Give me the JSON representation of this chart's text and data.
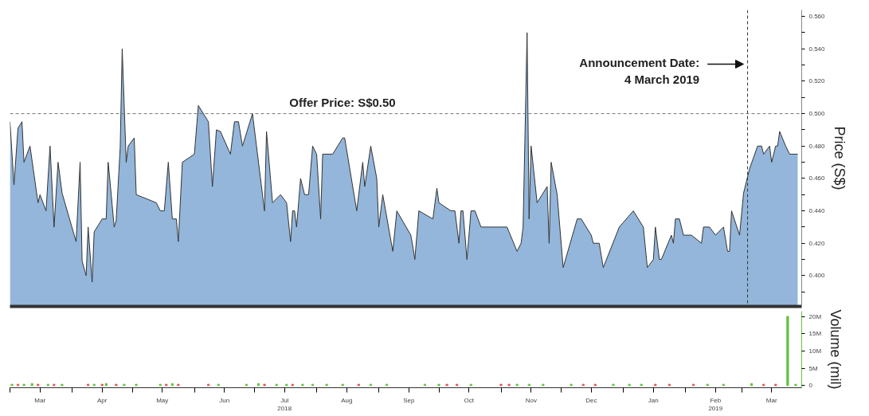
{
  "chart_data": [
    {
      "type": "area",
      "ylabel": "Price (S$)",
      "xlim": [
        "2018-03-01",
        "2019-03-31"
      ],
      "ylim": [
        0.381,
        0.564
      ],
      "tick_labels": "y",
      "grid": false,
      "yticks": [
        {
          "value": 0.39,
          "label": null
        },
        {
          "value": 0.4,
          "label": "0.400"
        },
        {
          "value": 0.41,
          "label": null
        },
        {
          "value": 0.42,
          "label": "0.420"
        },
        {
          "value": 0.43,
          "label": null
        },
        {
          "value": 0.44,
          "label": "0.440"
        },
        {
          "value": 0.45,
          "label": null
        },
        {
          "value": 0.46,
          "label": "0.460"
        },
        {
          "value": 0.47,
          "label": null
        },
        {
          "value": 0.48,
          "label": "0.480"
        },
        {
          "value": 0.49,
          "label": null
        },
        {
          "value": 0.5,
          "label": "0.500"
        },
        {
          "value": 0.51,
          "label": null
        },
        {
          "value": 0.52,
          "label": "0.520"
        },
        {
          "value": 0.53,
          "label": null
        },
        {
          "value": 0.54,
          "label": "0.540"
        },
        {
          "value": 0.55,
          "label": null
        },
        {
          "value": 0.56,
          "label": "0.560"
        }
      ],
      "x": [
        "2018-03-01",
        "2018-03-03",
        "2018-03-05",
        "2018-03-07",
        "2018-03-08",
        "2018-03-11",
        "2018-03-15",
        "2018-03-16",
        "2018-03-19",
        "2018-03-21",
        "2018-03-23",
        "2018-03-25",
        "2018-03-27",
        "2018-04-03",
        "2018-04-05",
        "2018-04-06",
        "2018-04-08",
        "2018-04-09",
        "2018-04-11",
        "2018-04-12",
        "2018-04-14",
        "2018-04-16",
        "2018-04-18",
        "2018-04-19",
        "2018-04-20",
        "2018-04-22",
        "2018-04-23",
        "2018-04-25",
        "2018-04-26",
        "2018-04-28",
        "2018-04-29",
        "2018-05-02",
        "2018-05-03",
        "2018-05-13",
        "2018-05-15",
        "2018-05-17",
        "2018-05-19",
        "2018-05-21",
        "2018-05-23",
        "2018-05-24",
        "2018-05-26",
        "2018-06-01",
        "2018-06-03",
        "2018-06-08",
        "2018-06-10",
        "2018-06-12",
        "2018-06-14",
        "2018-06-19",
        "2018-06-21",
        "2018-06-23",
        "2018-06-25",
        "2018-06-30",
        "2018-07-06",
        "2018-07-07",
        "2018-07-10",
        "2018-07-14",
        "2018-07-17",
        "2018-07-19",
        "2018-07-20",
        "2018-07-21",
        "2018-07-22",
        "2018-07-24",
        "2018-07-26",
        "2018-07-28",
        "2018-07-30",
        "2018-08-01",
        "2018-08-03",
        "2018-08-04",
        "2018-08-09",
        "2018-08-14",
        "2018-08-15",
        "2018-08-21",
        "2018-08-24",
        "2018-08-25",
        "2018-08-28",
        "2018-08-31",
        "2018-09-01",
        "2018-09-03",
        "2018-09-08",
        "2018-09-10",
        "2018-09-17",
        "2018-09-18",
        "2018-09-19",
        "2018-09-21",
        "2018-09-28",
        "2018-09-30",
        "2018-10-01",
        "2018-10-07",
        "2018-10-09",
        "2018-10-11",
        "2018-10-12",
        "2018-10-13",
        "2018-10-15",
        "2018-10-17",
        "2018-10-19",
        "2018-10-22",
        "2018-11-04",
        "2018-11-09",
        "2018-11-11",
        "2018-11-12",
        "2018-11-14",
        "2018-11-15",
        "2018-11-16",
        "2018-11-19",
        "2018-11-24",
        "2018-11-25",
        "2018-11-26",
        "2018-11-29",
        "2018-12-02",
        "2018-12-09",
        "2018-12-11",
        "2018-12-16",
        "2018-12-17",
        "2018-12-20",
        "2018-12-22",
        "2018-12-30",
        "2019-01-06",
        "2019-01-11",
        "2019-01-13",
        "2019-01-16",
        "2019-01-17",
        "2019-01-19",
        "2019-01-20",
        "2019-01-25",
        "2019-01-26",
        "2019-01-27",
        "2019-01-29",
        "2019-01-31",
        "2019-02-04",
        "2019-02-09",
        "2019-02-10",
        "2019-02-13",
        "2019-02-16",
        "2019-02-20",
        "2019-02-22",
        "2019-02-23",
        "2019-02-24",
        "2019-02-28",
        "2019-03-02",
        "2019-03-05",
        "2019-03-09",
        "2019-03-11",
        "2019-03-12",
        "2019-03-15",
        "2019-03-16",
        "2019-03-18",
        "2019-03-19",
        "2019-03-20",
        "2019-03-23",
        "2019-03-25",
        "2019-03-29"
      ],
      "series": [
        {
          "color": "#93b6da",
          "values": [
            0.495,
            0.456,
            0.491,
            0.495,
            0.47,
            0.48,
            0.445,
            0.45,
            0.44,
            0.48,
            0.43,
            0.47,
            0.451,
            0.421,
            0.47,
            0.409,
            0.4,
            0.43,
            0.396,
            0.427,
            0.431,
            0.435,
            0.435,
            0.47,
            0.457,
            0.43,
            0.434,
            0.479,
            0.54,
            0.47,
            0.48,
            0.485,
            0.45,
            0.445,
            0.44,
            0.44,
            0.47,
            0.435,
            0.435,
            0.421,
            0.47,
            0.475,
            0.505,
            0.495,
            0.455,
            0.49,
            0.489,
            0.475,
            0.495,
            0.495,
            0.48,
            0.5,
            0.44,
            0.489,
            0.445,
            0.45,
            0.445,
            0.421,
            0.44,
            0.44,
            0.43,
            0.46,
            0.45,
            0.45,
            0.48,
            0.475,
            0.435,
            0.475,
            0.475,
            0.485,
            0.485,
            0.44,
            0.47,
            0.455,
            0.48,
            0.46,
            0.43,
            0.45,
            0.415,
            0.44,
            0.425,
            0.418,
            0.41,
            0.44,
            0.435,
            0.454,
            0.445,
            0.44,
            0.44,
            0.42,
            0.44,
            0.44,
            0.41,
            0.44,
            0.44,
            0.43,
            0.43,
            0.415,
            0.42,
            0.43,
            0.55,
            0.435,
            0.48,
            0.445,
            0.455,
            0.42,
            0.47,
            0.45,
            0.405,
            0.435,
            0.435,
            0.425,
            0.42,
            0.42,
            0.405,
            0.43,
            0.44,
            0.43,
            0.405,
            0.41,
            0.43,
            0.41,
            0.41,
            0.425,
            0.42,
            0.435,
            0.435,
            0.425,
            0.425,
            0.42,
            0.43,
            0.43,
            0.425,
            0.43,
            0.415,
            0.415,
            0.44,
            0.425,
            0.451,
            0.466,
            0.48,
            0.48,
            0.475,
            0.48,
            0.47,
            0.48,
            0.48,
            0.489,
            0.48,
            0.475,
            0.475
          ]
        }
      ],
      "ref_lines": [
        {
          "axis": "y",
          "value": 0.5,
          "label": "Offer Price: S$0.50",
          "color": "#777777",
          "line_style": "dashed"
        },
        {
          "axis": "x",
          "value": "2019-03-04",
          "label": "Announcement Date:\n4 March 2019",
          "color": "#333333",
          "line_style": "dashed"
        }
      ]
    },
    {
      "type": "bar",
      "ylabel": "Volume (mil)",
      "xlim": [
        "2018-03-01",
        "2019-03-31"
      ],
      "ylim": [
        -0.6,
        21.5
      ],
      "grid": false,
      "yticks": [
        {
          "value": 0,
          "label": "0"
        },
        {
          "value": 5,
          "label": "5M"
        },
        {
          "value": 10,
          "label": "10M"
        },
        {
          "value": 15,
          "label": "15M"
        },
        {
          "value": 20,
          "label": "20M"
        }
      ],
      "xticks": [
        {
          "value": "2018-03-01",
          "label": null
        },
        {
          "value": "2018-03-16",
          "label": "Mar"
        },
        {
          "value": "2018-04-01",
          "label": null
        },
        {
          "value": "2018-04-16",
          "label": "Apr"
        },
        {
          "value": "2018-05-01",
          "label": null
        },
        {
          "value": "2018-05-16",
          "label": "May"
        },
        {
          "value": "2018-06-01",
          "label": null
        },
        {
          "value": "2018-06-16",
          "label": "Jun"
        },
        {
          "value": "2018-07-01",
          "label": null
        },
        {
          "value": "2018-07-16",
          "label": "Jul\n2018"
        },
        {
          "value": "2018-08-01",
          "label": null
        },
        {
          "value": "2018-08-16",
          "label": "Aug"
        },
        {
          "value": "2018-09-01",
          "label": null
        },
        {
          "value": "2018-09-16",
          "label": "Sep"
        },
        {
          "value": "2018-10-01",
          "label": null
        },
        {
          "value": "2018-10-16",
          "label": "Oct"
        },
        {
          "value": "2018-11-01",
          "label": null
        },
        {
          "value": "2018-11-16",
          "label": "Nov"
        },
        {
          "value": "2018-12-01",
          "label": null
        },
        {
          "value": "2018-12-16",
          "label": "Dec"
        },
        {
          "value": "2019-01-01",
          "label": null
        },
        {
          "value": "2019-01-16",
          "label": "Jan"
        },
        {
          "value": "2019-02-01",
          "label": null
        },
        {
          "value": "2019-02-16",
          "label": "Feb\n2019"
        },
        {
          "value": "2019-03-01",
          "label": null
        },
        {
          "value": "2019-03-16",
          "label": "Mar"
        }
      ],
      "x": [
        "2018-03-02",
        "2018-03-05",
        "2018-03-08",
        "2018-03-12",
        "2018-03-15",
        "2018-03-20",
        "2018-03-23",
        "2018-03-27",
        "2018-04-09",
        "2018-04-12",
        "2018-04-16",
        "2018-04-18",
        "2018-04-23",
        "2018-04-27",
        "2018-05-03",
        "2018-05-15",
        "2018-05-18",
        "2018-05-21",
        "2018-05-24",
        "2018-06-08",
        "2018-06-13",
        "2018-06-27",
        "2018-07-03",
        "2018-07-06",
        "2018-07-12",
        "2018-07-17",
        "2018-07-20",
        "2018-07-25",
        "2018-07-30",
        "2018-08-06",
        "2018-08-14",
        "2018-08-22",
        "2018-08-28",
        "2018-09-05",
        "2018-09-24",
        "2018-10-01",
        "2018-10-05",
        "2018-10-10",
        "2018-10-17",
        "2018-11-01",
        "2018-11-05",
        "2018-11-09",
        "2018-11-15",
        "2018-11-22",
        "2018-12-06",
        "2018-12-12",
        "2018-12-18",
        "2018-12-27",
        "2019-01-04",
        "2019-01-10",
        "2019-01-17",
        "2019-01-24",
        "2019-02-05",
        "2019-02-12",
        "2019-02-20",
        "2019-03-06",
        "2019-03-12",
        "2019-03-18",
        "2019-03-24",
        "2019-03-28"
      ],
      "series": [
        {
          "values": [
            0.4,
            0.4,
            0.4,
            0.6,
            0.4,
            0.4,
            0.4,
            0.4,
            0.4,
            0.4,
            0.4,
            0.6,
            0.4,
            0.4,
            0.4,
            0.4,
            0.4,
            0.6,
            0.4,
            0.4,
            0.4,
            0.4,
            0.6,
            0.4,
            0.4,
            0.4,
            0.4,
            0.4,
            0.4,
            0.4,
            0.4,
            0.4,
            0.4,
            0.4,
            0.4,
            0.4,
            0.4,
            0.4,
            0.4,
            0.4,
            0.4,
            0.4,
            0.4,
            0.4,
            0.4,
            0.4,
            0.4,
            0.4,
            0.4,
            0.4,
            0.4,
            0.4,
            0.4,
            0.4,
            0.4,
            0.6,
            0.4,
            0.4,
            20,
            0.4
          ],
          "colors": [
            "#66c244",
            "#e05555",
            "#66c244",
            "#66c244",
            "#e05555",
            "#66c244",
            "#e05555",
            "#66c244",
            "#e05555",
            "#66c244",
            "#e05555",
            "#66c244",
            "#e05555",
            "#66c244",
            "#66c244",
            "#66c244",
            "#e05555",
            "#66c244",
            "#e05555",
            "#e05555",
            "#66c244",
            "#66c244",
            "#66c244",
            "#e05555",
            "#66c244",
            "#66c244",
            "#e05555",
            "#66c244",
            "#66c244",
            "#66c244",
            "#66c244",
            "#e05555",
            "#66c244",
            "#66c244",
            "#66c244",
            "#66c244",
            "#e05555",
            "#e05555",
            "#66c244",
            "#e05555",
            "#e05555",
            "#66c244",
            "#66c244",
            "#66c244",
            "#66c244",
            "#e05555",
            "#e05555",
            "#66c244",
            "#66c244",
            "#66c244",
            "#e05555",
            "#e05555",
            "#e05555",
            "#66c244",
            "#66c244",
            "#66c244",
            "#e05555",
            "#e05555",
            "#66c244",
            "#66c244"
          ]
        }
      ]
    }
  ]
}
